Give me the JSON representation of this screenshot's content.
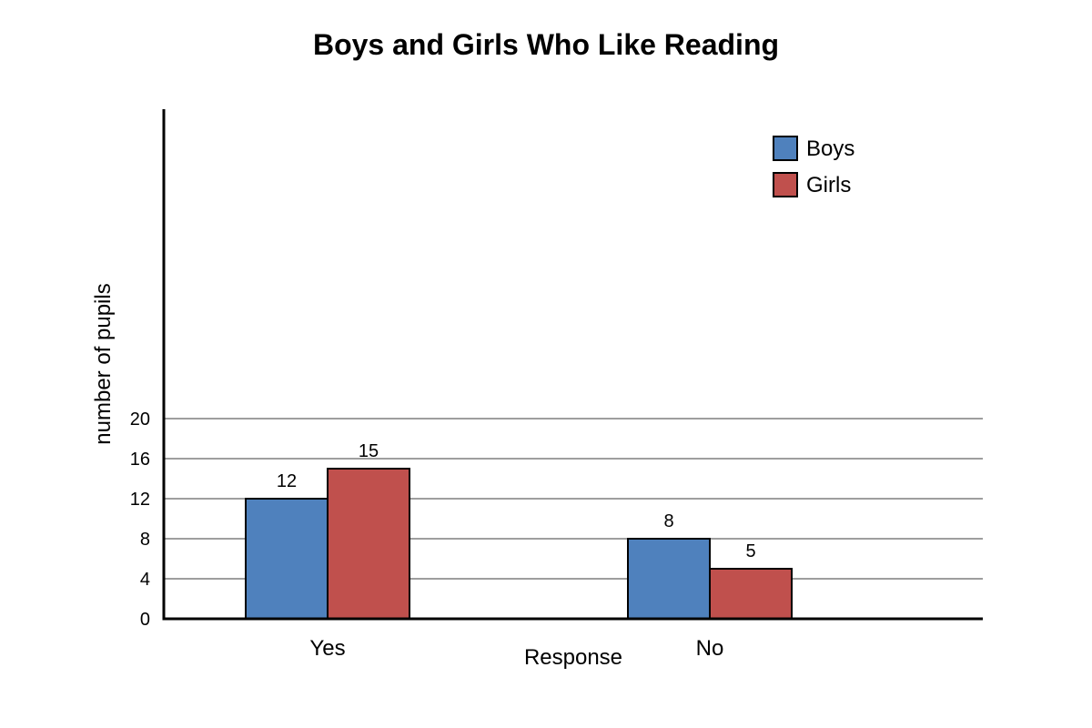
{
  "chart_data": {
    "type": "bar",
    "title": "Boys and Girls Who Like Reading",
    "xlabel": "Response",
    "ylabel": "number of pupils",
    "categories": [
      "Yes",
      "No"
    ],
    "series": [
      {
        "name": "Boys",
        "values": [
          12,
          8
        ],
        "color": "#4f81bd"
      },
      {
        "name": "Girls",
        "values": [
          15,
          5
        ],
        "color": "#c0504d"
      }
    ],
    "y_ticks": [
      0,
      4,
      8,
      12,
      16,
      20
    ],
    "grid": true,
    "legend_position": "top-right"
  }
}
